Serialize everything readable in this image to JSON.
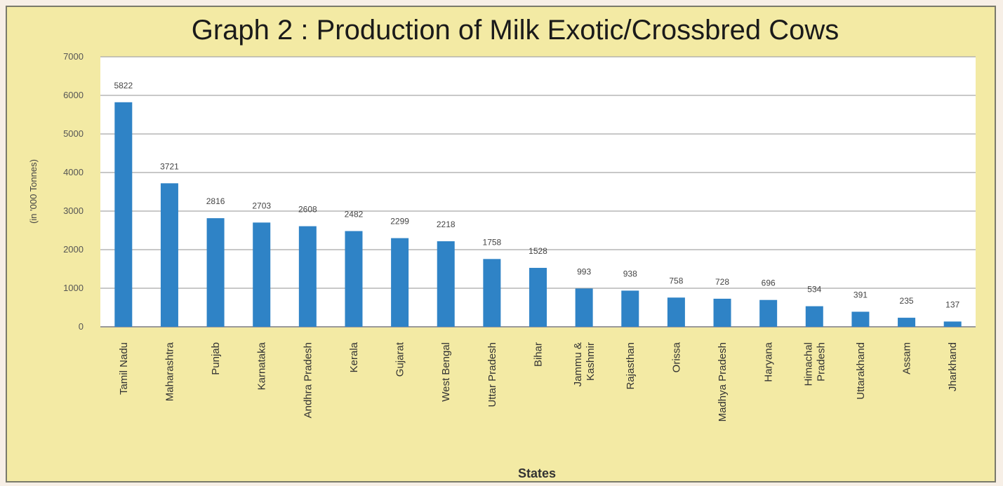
{
  "chart_data": {
    "type": "bar",
    "title": "Graph 2 : Production of Milk Exotic/Crossbred Cows",
    "xlabel": "States",
    "ylabel": "(in '000 Tonnes)",
    "ylim": [
      0,
      7000
    ],
    "yticks": [
      "0",
      "1000",
      "2000",
      "3000",
      "4000",
      "5000",
      "6000",
      "7000"
    ],
    "grid": true,
    "bar_color": "#2f83c6",
    "plot_background": "#ffffff",
    "frame_background": "#f3eaa4",
    "categories": [
      [
        "Tamil Nadu"
      ],
      [
        "Maharashtra"
      ],
      [
        "Punjab"
      ],
      [
        "Karnataka"
      ],
      [
        "Andhra Pradesh"
      ],
      [
        "Kerala"
      ],
      [
        "Gujarat"
      ],
      [
        "West Bengal"
      ],
      [
        "Uttar Pradesh"
      ],
      [
        "Bihar"
      ],
      [
        "Jammu &",
        "Kashmir"
      ],
      [
        "Rajasthan"
      ],
      [
        "Orissa"
      ],
      [
        "Madhya Pradesh"
      ],
      [
        "Haryana"
      ],
      [
        "Himachal",
        "Pradesh"
      ],
      [
        "Uttarakhand"
      ],
      [
        "Assam"
      ],
      [
        "Jharkhand"
      ]
    ],
    "values": [
      5822,
      3721,
      2816,
      2703,
      2608,
      2482,
      2299,
      2218,
      1758,
      1528,
      993,
      938,
      758,
      728,
      696,
      534,
      391,
      235,
      137
    ],
    "value_labels": [
      "5822",
      "3721",
      "2816",
      "2703",
      "2608",
      "2482",
      "2299",
      "2218",
      "1758",
      "1528",
      "993",
      "938",
      "758",
      "728",
      "696",
      "534",
      "391",
      "235",
      "137"
    ]
  }
}
